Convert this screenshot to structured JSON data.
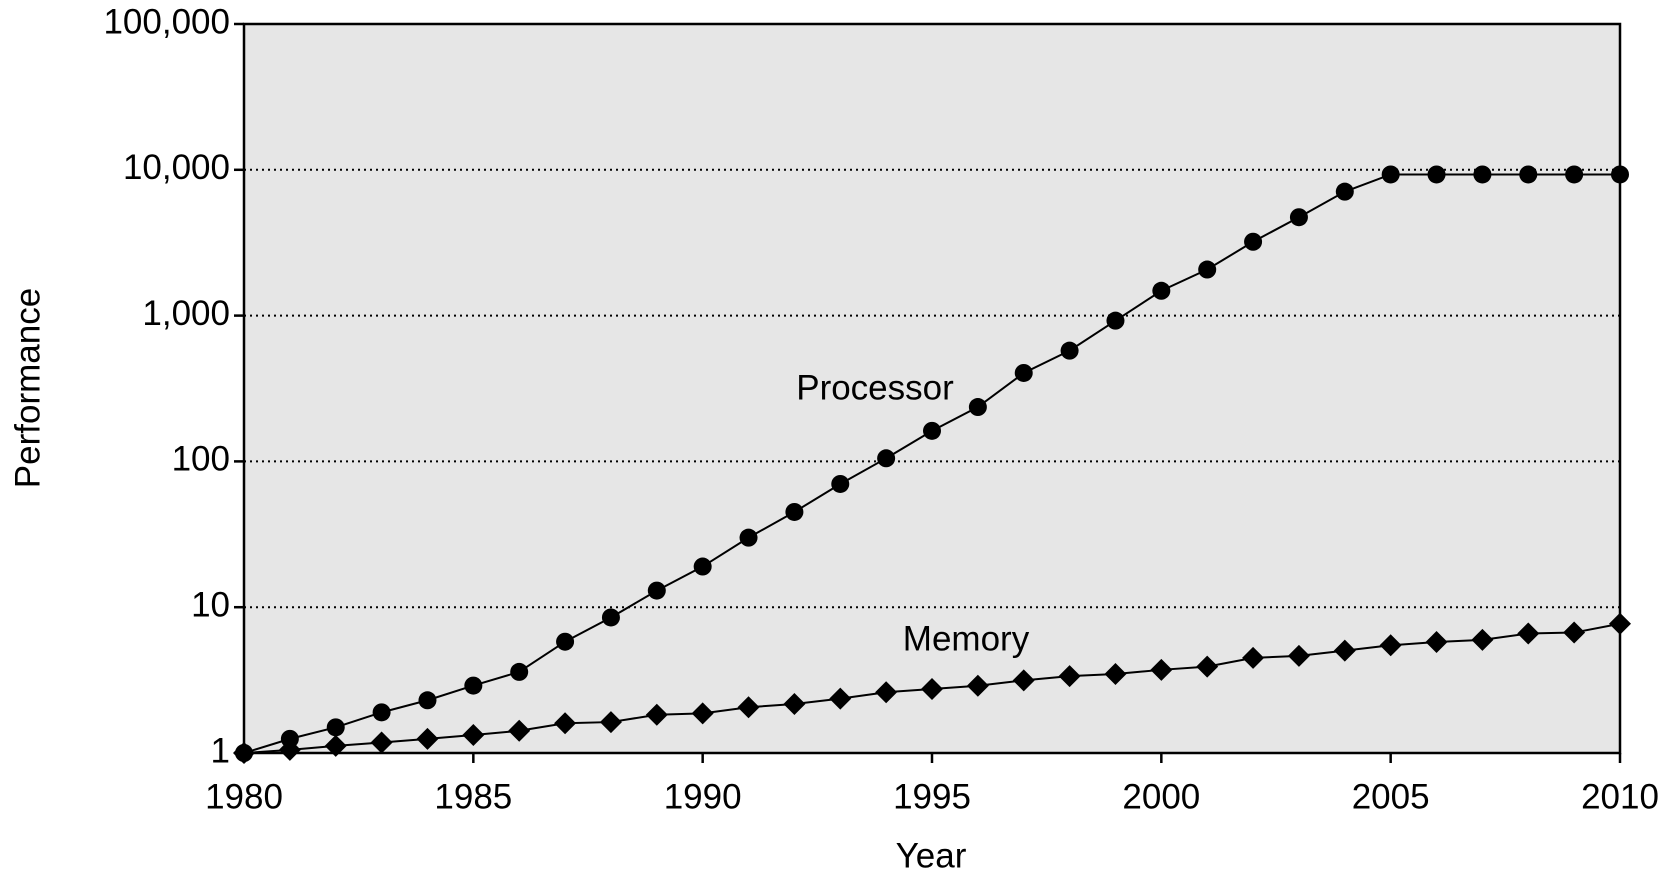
{
  "chart_data": {
    "type": "line",
    "xlabel": "Year",
    "ylabel": "Performance",
    "x": [
      1980,
      1981,
      1982,
      1983,
      1984,
      1985,
      1986,
      1987,
      1988,
      1989,
      1990,
      1991,
      1992,
      1993,
      1994,
      1995,
      1996,
      1997,
      1998,
      1999,
      2000,
      2001,
      2002,
      2003,
      2004,
      2005,
      2006,
      2007,
      2008,
      2009,
      2010
    ],
    "series": [
      {
        "name": "Processor",
        "color": "#000000",
        "marker": "circle",
        "values": [
          1,
          1.25,
          1.5,
          1.9,
          2.3,
          2.9,
          3.6,
          5.8,
          8.5,
          13,
          19,
          30,
          45,
          70,
          105,
          162,
          236,
          404,
          575,
          923,
          1480,
          2070,
          3210,
          4730,
          7080,
          9290,
          9290,
          9290,
          9290,
          9290,
          9290
        ]
      },
      {
        "name": "Memory",
        "color": "#000000",
        "marker": "diamond",
        "values": [
          1,
          1.05,
          1.12,
          1.18,
          1.25,
          1.33,
          1.42,
          1.6,
          1.63,
          1.83,
          1.87,
          2.06,
          2.17,
          2.36,
          2.61,
          2.75,
          2.89,
          3.15,
          3.37,
          3.48,
          3.72,
          3.91,
          4.49,
          4.64,
          5.04,
          5.48,
          5.77,
          5.97,
          6.6,
          6.7,
          7.7
        ]
      }
    ],
    "xlim": [
      1980,
      2010
    ],
    "xticks": [
      1980,
      1985,
      1990,
      1995,
      2000,
      2005,
      2010
    ],
    "ylim": [
      1,
      100000
    ],
    "ylog": true,
    "yticks": [
      1,
      10,
      100,
      {
        "value": 1000,
        "label": "1,000"
      },
      {
        "value": 10000,
        "label": "10,000"
      },
      {
        "value": 100000,
        "label": "100,000"
      }
    ],
    "grid": true,
    "plot_background": "#e6e6e6"
  }
}
